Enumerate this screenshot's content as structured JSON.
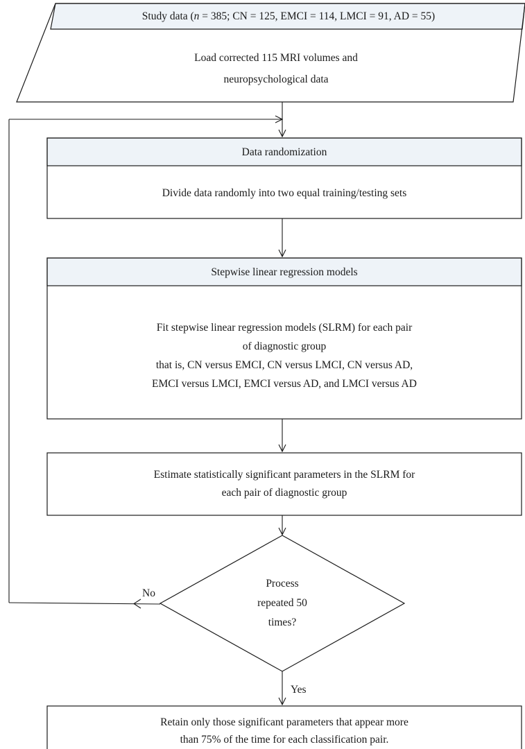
{
  "input_block": {
    "header_prefix": "Study data (",
    "header_n_symbol": "n",
    "header_suffix": " = 385; CN = 125, EMCI = 114, LMCI = 91, AD = 55)",
    "body_line1": "Load corrected 115 MRI volumes and",
    "body_line2": "neuropsychological data"
  },
  "randomization_block": {
    "header": "Data randomization",
    "body": "Divide data randomly into two equal training/testing sets"
  },
  "regression_block": {
    "header": "Stepwise linear regression models",
    "body_line1": "Fit stepwise linear regression models (SLRM) for each pair",
    "body_line2": "of diagnostic group",
    "body_line3": "that is, CN versus EMCI, CN versus LMCI, CN versus AD,",
    "body_line4": "EMCI versus LMCI, EMCI versus AD, and LMCI versus AD"
  },
  "estimate_block": {
    "body_line1": "Estimate statistically significant parameters in the SLRM for",
    "body_line2": "each pair of diagnostic group"
  },
  "decision_block": {
    "line1": "Process",
    "line2": "repeated 50",
    "line3": "times?"
  },
  "labels": {
    "no": "No",
    "yes": "Yes"
  },
  "final_block": {
    "body_line1": "Retain only those significant parameters that appear more",
    "body_line2": "than 75% of the time for each classification pair."
  },
  "colors": {
    "header_fill": "#eef3f8",
    "stroke": "#1a1a1a",
    "background": "#ffffff"
  }
}
